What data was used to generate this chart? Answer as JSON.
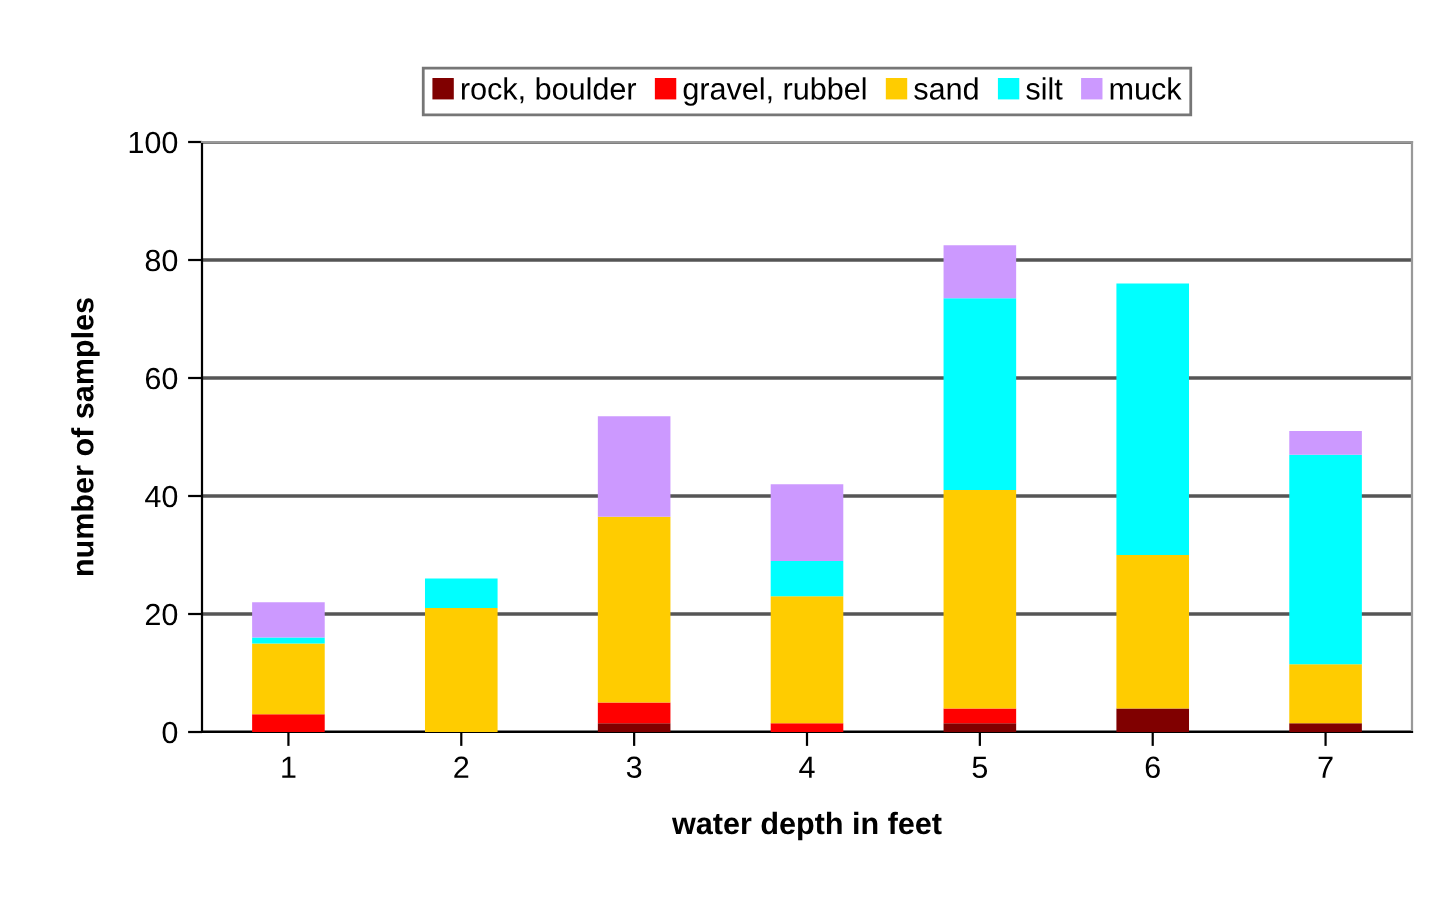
{
  "chart_data": {
    "type": "bar",
    "stacked": true,
    "categories": [
      "1",
      "2",
      "3",
      "4",
      "5",
      "6",
      "7"
    ],
    "series": [
      {
        "name": "rock, boulder",
        "color": "#800000",
        "values": [
          0,
          0,
          1.5,
          0,
          1.5,
          4,
          1.5
        ]
      },
      {
        "name": "gravel, rubbel",
        "color": "#ff0000",
        "values": [
          3,
          0,
          3.5,
          1.5,
          2.5,
          0,
          0
        ]
      },
      {
        "name": "sand",
        "color": "#ffcc00",
        "values": [
          12,
          21,
          31.5,
          21.5,
          37,
          26,
          10
        ]
      },
      {
        "name": "silt",
        "color": "#00ffff",
        "values": [
          1,
          5,
          0,
          6,
          32.5,
          46,
          35.5
        ]
      },
      {
        "name": "muck",
        "color": "#cc99ff",
        "values": [
          6,
          0,
          17,
          13,
          9,
          0,
          4
        ]
      }
    ],
    "xlabel": "water depth in feet",
    "ylabel": "number of samples",
    "ylim": [
      0,
      100
    ],
    "yticks": [
      0,
      20,
      40,
      60,
      80,
      100
    ],
    "grid": "y",
    "legend": "top"
  }
}
